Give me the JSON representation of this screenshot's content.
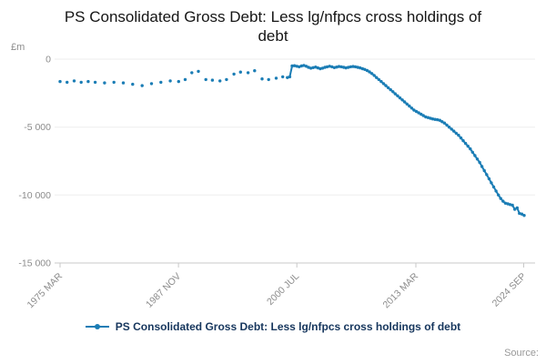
{
  "title": "PS Consolidated Gross Debt: Less lg/nfpcs cross holdings of debt",
  "y_axis_unit": "£m",
  "source_label": "Source:",
  "legend": {
    "label": "PS Consolidated Gross Debt: Less lg/nfpcs cross holdings of debt"
  },
  "colors": {
    "line": "#1b7db5",
    "grid": "#ededed",
    "axis": "#c9c9c9",
    "tick_text": "#8c8c8c",
    "legend_text": "#16365d",
    "title_text": "#151515",
    "source_text": "#999999"
  },
  "chart_data": {
    "type": "line",
    "title": "PS Consolidated Gross Debt: Less lg/nfpcs cross holdings of debt",
    "xlabel": "",
    "ylabel": "£m",
    "ylim": [
      -15000,
      0
    ],
    "x_range": [
      1975.25,
      2024.75
    ],
    "grid": true,
    "legend_position": "bottom",
    "y_ticks": [
      {
        "v": 0,
        "label": "0"
      },
      {
        "v": -5000,
        "label": "-5 000"
      },
      {
        "v": -10000,
        "label": "-10 000"
      },
      {
        "v": -15000,
        "label": "-15 000"
      }
    ],
    "x_ticks": [
      {
        "v": 1975.25,
        "label": "1975 MAR"
      },
      {
        "v": 1987.875,
        "label": "1987 NOV"
      },
      {
        "v": 2000.5,
        "label": "2000 JUL"
      },
      {
        "v": 2013.2,
        "label": "2013 MAR"
      },
      {
        "v": 2024.7,
        "label": "2024 SEP"
      }
    ],
    "dense_from": 1999.75,
    "series": [
      {
        "name": "PS Consolidated Gross Debt: Less lg/nfpcs cross holdings of debt",
        "points": [
          [
            1975.25,
            -1650
          ],
          [
            1976,
            -1700
          ],
          [
            1976.75,
            -1600
          ],
          [
            1977.5,
            -1700
          ],
          [
            1978.25,
            -1650
          ],
          [
            1979,
            -1700
          ],
          [
            1980,
            -1750
          ],
          [
            1981,
            -1700
          ],
          [
            1982,
            -1750
          ],
          [
            1983,
            -1850
          ],
          [
            1984,
            -1950
          ],
          [
            1985,
            -1800
          ],
          [
            1986,
            -1700
          ],
          [
            1987,
            -1600
          ],
          [
            1987.9,
            -1650
          ],
          [
            1988.6,
            -1500
          ],
          [
            1989.3,
            -1000
          ],
          [
            1990,
            -900
          ],
          [
            1990.8,
            -1500
          ],
          [
            1991.5,
            -1550
          ],
          [
            1992.3,
            -1600
          ],
          [
            1993,
            -1500
          ],
          [
            1993.8,
            -1100
          ],
          [
            1994.5,
            -950
          ],
          [
            1995.3,
            -1000
          ],
          [
            1996,
            -850
          ],
          [
            1996.8,
            -1450
          ],
          [
            1997.5,
            -1500
          ],
          [
            1998.3,
            -1400
          ],
          [
            1999,
            -1300
          ],
          [
            1999.5,
            -1350
          ],
          [
            1999.75,
            -1300
          ],
          [
            2000,
            -500
          ],
          [
            2000.25,
            -480
          ],
          [
            2000.5,
            -520
          ],
          [
            2000.75,
            -560
          ],
          [
            2001,
            -500
          ],
          [
            2001.25,
            -460
          ],
          [
            2001.5,
            -520
          ],
          [
            2001.75,
            -600
          ],
          [
            2002,
            -660
          ],
          [
            2002.25,
            -620
          ],
          [
            2002.5,
            -580
          ],
          [
            2002.75,
            -640
          ],
          [
            2003,
            -700
          ],
          [
            2003.25,
            -660
          ],
          [
            2003.5,
            -600
          ],
          [
            2003.75,
            -560
          ],
          [
            2004,
            -520
          ],
          [
            2004.25,
            -560
          ],
          [
            2004.5,
            -620
          ],
          [
            2004.75,
            -580
          ],
          [
            2005,
            -540
          ],
          [
            2005.25,
            -560
          ],
          [
            2005.5,
            -600
          ],
          [
            2005.75,
            -640
          ],
          [
            2006,
            -600
          ],
          [
            2006.25,
            -560
          ],
          [
            2006.5,
            -540
          ],
          [
            2006.75,
            -560
          ],
          [
            2007,
            -600
          ],
          [
            2007.25,
            -640
          ],
          [
            2007.5,
            -700
          ],
          [
            2007.75,
            -760
          ],
          [
            2008,
            -840
          ],
          [
            2008.25,
            -940
          ],
          [
            2008.5,
            -1060
          ],
          [
            2008.75,
            -1200
          ],
          [
            2009,
            -1350
          ],
          [
            2009.25,
            -1500
          ],
          [
            2009.5,
            -1650
          ],
          [
            2009.75,
            -1800
          ],
          [
            2010,
            -1950
          ],
          [
            2010.25,
            -2100
          ],
          [
            2010.5,
            -2250
          ],
          [
            2010.75,
            -2400
          ],
          [
            2011,
            -2550
          ],
          [
            2011.25,
            -2700
          ],
          [
            2011.5,
            -2850
          ],
          [
            2011.75,
            -3000
          ],
          [
            2012,
            -3150
          ],
          [
            2012.25,
            -3300
          ],
          [
            2012.5,
            -3450
          ],
          [
            2012.75,
            -3600
          ],
          [
            2013,
            -3750
          ],
          [
            2013.25,
            -3850
          ],
          [
            2013.5,
            -3950
          ],
          [
            2013.75,
            -4050
          ],
          [
            2014,
            -4150
          ],
          [
            2014.25,
            -4250
          ],
          [
            2014.5,
            -4300
          ],
          [
            2014.75,
            -4350
          ],
          [
            2015,
            -4400
          ],
          [
            2015.25,
            -4430
          ],
          [
            2015.5,
            -4460
          ],
          [
            2015.75,
            -4500
          ],
          [
            2016,
            -4600
          ],
          [
            2016.25,
            -4700
          ],
          [
            2016.5,
            -4850
          ],
          [
            2016.75,
            -5000
          ],
          [
            2017,
            -5150
          ],
          [
            2017.25,
            -5300
          ],
          [
            2017.5,
            -5450
          ],
          [
            2017.75,
            -5600
          ],
          [
            2018,
            -5800
          ],
          [
            2018.25,
            -6000
          ],
          [
            2018.5,
            -6200
          ],
          [
            2018.75,
            -6400
          ],
          [
            2019,
            -6600
          ],
          [
            2019.25,
            -6850
          ],
          [
            2019.5,
            -7100
          ],
          [
            2019.75,
            -7350
          ],
          [
            2020,
            -7600
          ],
          [
            2020.25,
            -7900
          ],
          [
            2020.5,
            -8200
          ],
          [
            2020.75,
            -8500
          ],
          [
            2021,
            -8800
          ],
          [
            2021.25,
            -9100
          ],
          [
            2021.5,
            -9400
          ],
          [
            2021.75,
            -9700
          ],
          [
            2022,
            -10000
          ],
          [
            2022.25,
            -10250
          ],
          [
            2022.5,
            -10450
          ],
          [
            2022.75,
            -10600
          ],
          [
            2023,
            -10650
          ],
          [
            2023.25,
            -10700
          ],
          [
            2023.5,
            -10750
          ],
          [
            2023.75,
            -11050
          ],
          [
            2024,
            -10950
          ],
          [
            2024.25,
            -11350
          ],
          [
            2024.5,
            -11400
          ],
          [
            2024.75,
            -11500
          ]
        ]
      }
    ]
  }
}
